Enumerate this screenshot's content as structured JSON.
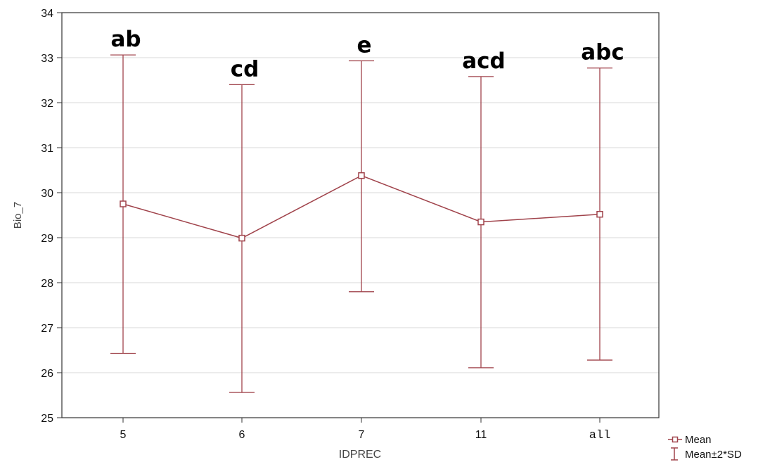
{
  "chart_data": {
    "type": "line",
    "xlabel": "IDPREC",
    "ylabel": "Bio_7",
    "categories": [
      "5",
      "6",
      "7",
      "11",
      "all"
    ],
    "ylim": [
      25,
      34
    ],
    "yticks": [
      "25",
      "26",
      "27",
      "28",
      "29",
      "30",
      "31",
      "32",
      "33",
      "34"
    ],
    "grid": "horizontal",
    "series": [
      {
        "name": "Mean",
        "values": [
          29.75,
          28.99,
          30.38,
          29.35,
          29.52
        ]
      }
    ],
    "error_bars": {
      "name": "Mean±2*SD",
      "low": [
        26.43,
        25.56,
        27.8,
        26.11,
        26.28
      ],
      "high": [
        33.06,
        32.4,
        32.93,
        32.58,
        32.77
      ]
    },
    "annotations": [
      "ab",
      "cd",
      "e",
      "acd",
      "abc"
    ],
    "legend_placement": "bottom-right",
    "color": "#a0434b"
  }
}
